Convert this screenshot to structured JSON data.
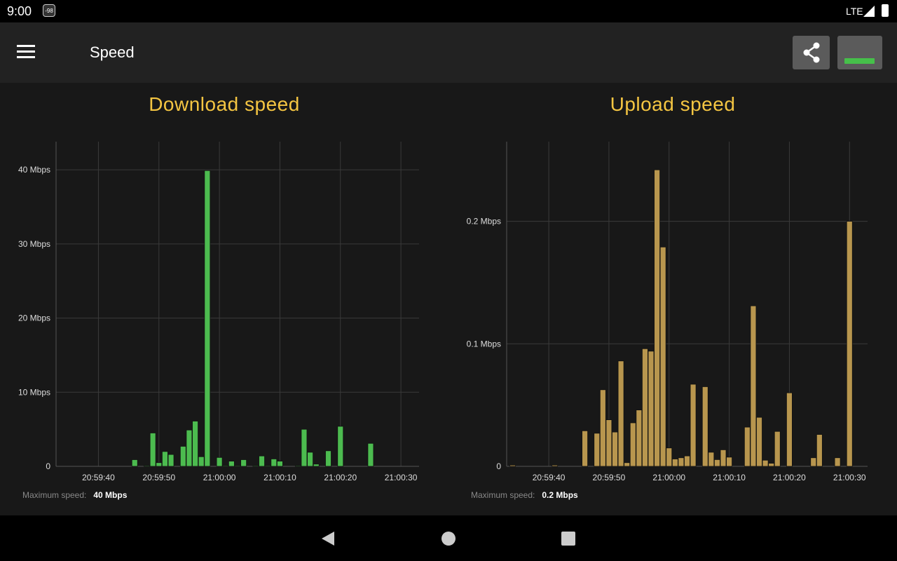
{
  "status_bar": {
    "time": "9:00",
    "badge": "-98",
    "network": "LTE",
    "icons": [
      "signal-icon",
      "battery-icon"
    ]
  },
  "app_bar": {
    "title": "Speed",
    "menu_icon": "hamburger-menu-icon",
    "share_icon": "share-icon",
    "graph_icon": "graph-bar-icon"
  },
  "colors": {
    "download": "#4cbb4f",
    "upload": "#b8964e",
    "title": "#f4c542"
  },
  "download": {
    "title": "Download speed",
    "max_label": "Maximum speed:",
    "max_value": "40 Mbps"
  },
  "upload": {
    "title": "Upload speed",
    "max_label": "Maximum speed:",
    "max_value": "0.2 Mbps"
  },
  "chart_data": [
    {
      "type": "bar",
      "title": "Download speed",
      "xlim": [
        "20:59:33",
        "21:00:33"
      ],
      "ylim": [
        0,
        43.8
      ],
      "grid": true,
      "x_ticks": [
        "20:59:40",
        "20:59:50",
        "21:00:00",
        "21:00:10",
        "21:00:20",
        "21:00:30"
      ],
      "y_ticks": [
        {
          "value": 0,
          "label": "0"
        },
        {
          "value": 10,
          "label": "10 Mbps"
        },
        {
          "value": 20,
          "label": "20 Mbps"
        },
        {
          "value": 30,
          "label": "30 Mbps"
        },
        {
          "value": 40,
          "label": "40 Mbps"
        }
      ],
      "unit": "Mbps",
      "points": [
        [
          "20:59:46",
          0.9
        ],
        [
          "20:59:48",
          0.1
        ],
        [
          "20:59:49",
          4.5
        ],
        [
          "20:59:50",
          0.5
        ],
        [
          "20:59:51",
          2.0
        ],
        [
          "20:59:52",
          1.6
        ],
        [
          "20:59:54",
          2.7
        ],
        [
          "20:59:55",
          4.9
        ],
        [
          "20:59:56",
          6.1
        ],
        [
          "20:59:57",
          1.3
        ],
        [
          "20:59:58",
          39.9
        ],
        [
          "21:00:00",
          1.2
        ],
        [
          "21:00:01",
          0.1
        ],
        [
          "21:00:02",
          0.7
        ],
        [
          "21:00:03",
          0.1
        ],
        [
          "21:00:04",
          0.9
        ],
        [
          "21:00:06",
          0.1
        ],
        [
          "21:00:07",
          1.4
        ],
        [
          "21:00:08",
          0.1
        ],
        [
          "21:00:09",
          1.0
        ],
        [
          "21:00:10",
          0.7
        ],
        [
          "21:00:13",
          0.1
        ],
        [
          "21:00:14",
          5.0
        ],
        [
          "21:00:15",
          1.9
        ],
        [
          "21:00:16",
          0.3
        ],
        [
          "21:00:18",
          2.1
        ],
        [
          "21:00:20",
          5.4
        ],
        [
          "21:00:25",
          3.1
        ]
      ]
    },
    {
      "type": "bar",
      "title": "Upload speed",
      "xlim": [
        "20:59:33",
        "21:00:33"
      ],
      "ylim": [
        0,
        0.265
      ],
      "grid": true,
      "x_ticks": [
        "20:59:40",
        "20:59:50",
        "21:00:00",
        "21:00:10",
        "21:00:20",
        "21:00:30"
      ],
      "y_ticks": [
        {
          "value": 0,
          "label": "0"
        },
        {
          "value": 0.1,
          "label": "0.1 Mbps"
        },
        {
          "value": 0.2,
          "label": "0.2 Mbps"
        }
      ],
      "unit": "Mbps",
      "points": [
        [
          "20:59:34",
          0.001
        ],
        [
          "20:59:41",
          0.001
        ],
        [
          "20:59:46",
          0.029
        ],
        [
          "20:59:48",
          0.027
        ],
        [
          "20:59:49",
          0.0625
        ],
        [
          "20:59:50",
          0.038
        ],
        [
          "20:59:51",
          0.028
        ],
        [
          "20:59:52",
          0.086
        ],
        [
          "20:59:53",
          0.003
        ],
        [
          "20:59:54",
          0.0355
        ],
        [
          "20:59:55",
          0.046
        ],
        [
          "20:59:56",
          0.096
        ],
        [
          "20:59:57",
          0.094
        ],
        [
          "20:59:58",
          0.242
        ],
        [
          "20:59:59",
          0.179
        ],
        [
          "21:00:00",
          0.015
        ],
        [
          "21:00:01",
          0.006
        ],
        [
          "21:00:02",
          0.007
        ],
        [
          "21:00:03",
          0.0085
        ],
        [
          "21:00:04",
          0.067
        ],
        [
          "21:00:06",
          0.065
        ],
        [
          "21:00:07",
          0.0115
        ],
        [
          "21:00:08",
          0.0055
        ],
        [
          "21:00:09",
          0.0135
        ],
        [
          "21:00:10",
          0.0075
        ],
        [
          "21:00:13",
          0.032
        ],
        [
          "21:00:14",
          0.131
        ],
        [
          "21:00:15",
          0.04
        ],
        [
          "21:00:16",
          0.005
        ],
        [
          "21:00:17",
          0.0025
        ],
        [
          "21:00:18",
          0.0285
        ],
        [
          "21:00:20",
          0.06
        ],
        [
          "21:00:24",
          0.007
        ],
        [
          "21:00:25",
          0.026
        ],
        [
          "21:00:28",
          0.007
        ],
        [
          "21:00:30",
          0.2
        ]
      ]
    }
  ],
  "nav_bar": {
    "icons": [
      "back-icon",
      "home-icon",
      "recents-icon"
    ]
  }
}
